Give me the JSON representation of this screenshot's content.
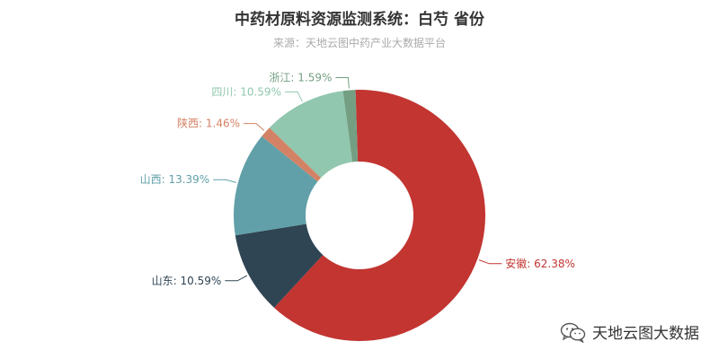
{
  "chart_data": {
    "type": "pie",
    "title": "中药材原料资源监测系统：白芍 省份",
    "subtitle": "来源：天地云图中药产业大数据平台",
    "slices": [
      {
        "label": "安徽",
        "value": 62.38,
        "display": "62.38%",
        "color": "#c23531"
      },
      {
        "label": "山东",
        "value": 10.59,
        "display": "10.59%",
        "color": "#2f4554"
      },
      {
        "label": "山西",
        "value": 13.39,
        "display": "13.39%",
        "color": "#61a0a8"
      },
      {
        "label": "陕西",
        "value": 1.46,
        "display": "1.46%",
        "color": "#d48265"
      },
      {
        "label": "四川",
        "value": 10.59,
        "display": "10.59%",
        "color": "#91c7ae"
      },
      {
        "label": "浙江",
        "value": 1.59,
        "display": "1.59%",
        "color": "#749f83"
      }
    ]
  },
  "watermark": {
    "text": "天地云图大数据",
    "icon": "wechat-icon"
  }
}
